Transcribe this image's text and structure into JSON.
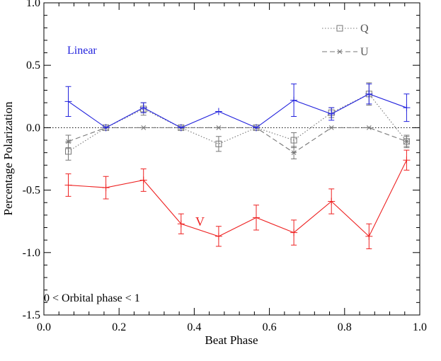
{
  "chart_data": {
    "type": "line",
    "xlabel": "Beat Phase",
    "ylabel": "Percentage Polarization",
    "xlim": [
      0.0,
      1.0
    ],
    "ylim": [
      -1.5,
      1.0
    ],
    "x_ticks": [
      "0.0",
      "0.2",
      "0.4",
      "0.6",
      "0.8",
      "1.0"
    ],
    "y_ticks": [
      "1.0",
      "0.5",
      "0.0",
      "-0.5",
      "-1.0",
      "-1.5"
    ],
    "zero_line": true,
    "grid": false,
    "legend": {
      "placement": "top-right",
      "entries": [
        "Q",
        "U"
      ]
    },
    "annotations": {
      "linear": "Linear",
      "v": "V",
      "orbital": "0 < Orbital phase < 1"
    },
    "series": [
      {
        "name": "Linear",
        "color": "#2222dd",
        "style": "solid",
        "marker": "plus",
        "x": [
          0.065,
          0.165,
          0.265,
          0.365,
          0.465,
          0.565,
          0.665,
          0.765,
          0.865,
          0.965
        ],
        "y": [
          0.21,
          0.0,
          0.16,
          0.0,
          0.13,
          0.0,
          0.22,
          0.11,
          0.27,
          0.16
        ],
        "err": [
          0.12,
          0.0,
          0.04,
          0.0,
          0.0,
          0.0,
          0.13,
          0.05,
          0.08,
          0.11
        ]
      },
      {
        "name": "Q",
        "color": "#777777",
        "style": "dotted",
        "marker": "square",
        "x": [
          0.065,
          0.165,
          0.265,
          0.365,
          0.465,
          0.565,
          0.665,
          0.765,
          0.865,
          0.965
        ],
        "y": [
          -0.19,
          0.0,
          0.15,
          0.0,
          -0.13,
          0.0,
          -0.1,
          0.12,
          0.27,
          -0.11
        ],
        "err": [
          0.07,
          0.0,
          0.05,
          0.0,
          0.06,
          0.0,
          0.06,
          0.04,
          0.09,
          0.05
        ]
      },
      {
        "name": "U",
        "color": "#777777",
        "style": "dashed",
        "marker": "asterisk",
        "x": [
          0.065,
          0.165,
          0.265,
          0.365,
          0.465,
          0.565,
          0.665,
          0.765,
          0.865,
          0.965
        ],
        "y": [
          -0.11,
          0.0,
          0.0,
          0.0,
          0.0,
          0.0,
          -0.2,
          0.0,
          0.0,
          -0.11
        ],
        "err": [
          0.05,
          0.0,
          0.0,
          0.0,
          0.0,
          0.0,
          0.05,
          0.0,
          0.0,
          0.04
        ]
      },
      {
        "name": "V",
        "color": "#ee2222",
        "style": "solid",
        "marker": "plus",
        "x": [
          0.065,
          0.165,
          0.265,
          0.365,
          0.465,
          0.565,
          0.665,
          0.765,
          0.865,
          0.965
        ],
        "y": [
          -0.46,
          -0.48,
          -0.42,
          -0.77,
          -0.87,
          -0.72,
          -0.84,
          -0.59,
          -0.87,
          -0.26
        ],
        "err": [
          0.09,
          0.09,
          0.09,
          0.08,
          0.08,
          0.1,
          0.1,
          0.1,
          0.1,
          0.08
        ]
      }
    ]
  }
}
